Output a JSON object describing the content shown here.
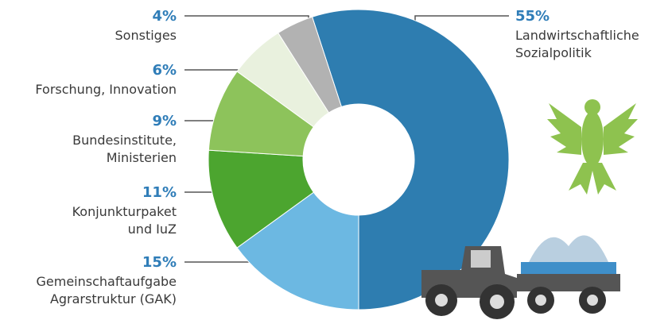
{
  "chart_data": {
    "type": "pie",
    "categories": [
      "Landwirtschaftliche\nSozialpolitik",
      "Gemeinschaftaufgabe\nAgrarstruktur (GAK)",
      "Konjunkturpaket\nund IuZ",
      "Bundesinstitute,\nMinisterien",
      "Forschung, Innovation",
      "Sonstiges"
    ],
    "values": [
      55,
      15,
      11,
      9,
      6,
      4
    ],
    "value_labels": [
      "55%",
      "15%",
      "11%",
      "9%",
      "6%",
      "4%"
    ],
    "colors": [
      "#2e7db0",
      "#6cb8e2",
      "#4ca52f",
      "#8dc35b",
      "#e9f1de",
      "#b2b2b2"
    ]
  }
}
